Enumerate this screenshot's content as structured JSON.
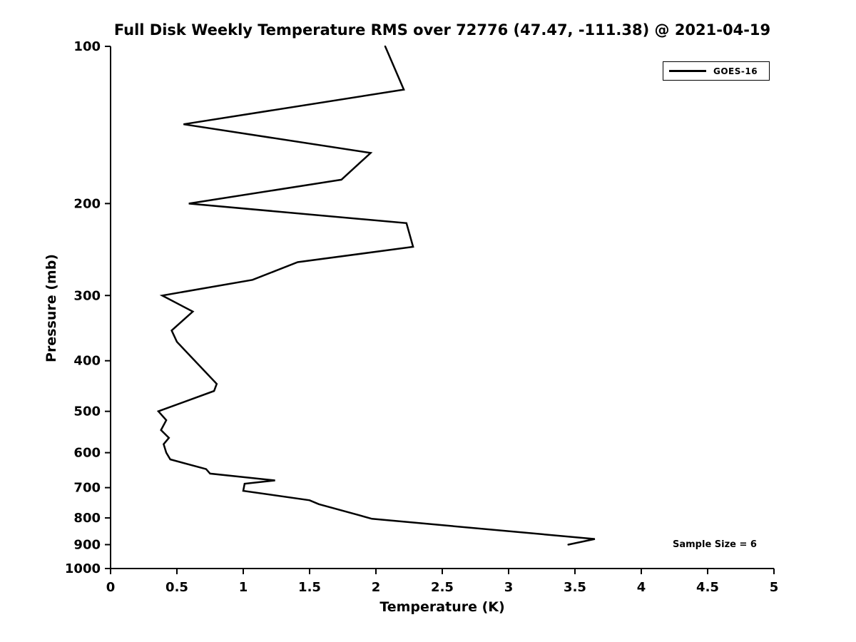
{
  "figure": {
    "background": "#ffffff"
  },
  "annotation": "Sample Size = 6",
  "legend": {
    "position": "top-right",
    "entries": [
      {
        "label": "GOES-16",
        "color": "#000000"
      }
    ]
  },
  "chart_data": {
    "type": "line",
    "title": "Full Disk Weekly Temperature RMS over 72776 (47.47, -111.38) @ 2021-04-19",
    "xlabel": "Temperature (K)",
    "ylabel": "Pressure (mb)",
    "xlim": [
      0,
      5
    ],
    "ylim": [
      100,
      1000
    ],
    "y_scale": "log",
    "y_direction": "inverted",
    "grid": "off",
    "x_ticks": [
      "0",
      "0.5",
      "1",
      "1.5",
      "2",
      "2.5",
      "3",
      "3.5",
      "4",
      "4.5",
      "5"
    ],
    "y_ticks": [
      "100",
      "200",
      "300",
      "400",
      "500",
      "600",
      "700",
      "800",
      "900",
      "1000"
    ],
    "series": [
      {
        "name": "GOES-16",
        "color": "#000000",
        "points_format": [
          "temperature_K",
          "pressure_mb"
        ],
        "points": [
          [
            2.07,
            100
          ],
          [
            2.21,
            121
          ],
          [
            0.55,
            141
          ],
          [
            1.96,
            160
          ],
          [
            1.74,
            180
          ],
          [
            0.59,
            200
          ],
          [
            2.23,
            218
          ],
          [
            2.28,
            242
          ],
          [
            1.41,
            259
          ],
          [
            1.07,
            280
          ],
          [
            0.39,
            300
          ],
          [
            0.62,
            322
          ],
          [
            0.46,
            350
          ],
          [
            0.5,
            368
          ],
          [
            0.8,
            443
          ],
          [
            0.78,
            457
          ],
          [
            0.36,
            500
          ],
          [
            0.42,
            520
          ],
          [
            0.38,
            543
          ],
          [
            0.44,
            562
          ],
          [
            0.4,
            578
          ],
          [
            0.42,
            600
          ],
          [
            0.45,
            618
          ],
          [
            0.72,
            645
          ],
          [
            0.75,
            658
          ],
          [
            1.24,
            678
          ],
          [
            1.01,
            688
          ],
          [
            1.0,
            710
          ],
          [
            1.5,
            740
          ],
          [
            1.57,
            753
          ],
          [
            1.87,
            790
          ],
          [
            1.97,
            803
          ],
          [
            3.65,
            878
          ],
          [
            3.45,
            900
          ]
        ]
      }
    ]
  }
}
